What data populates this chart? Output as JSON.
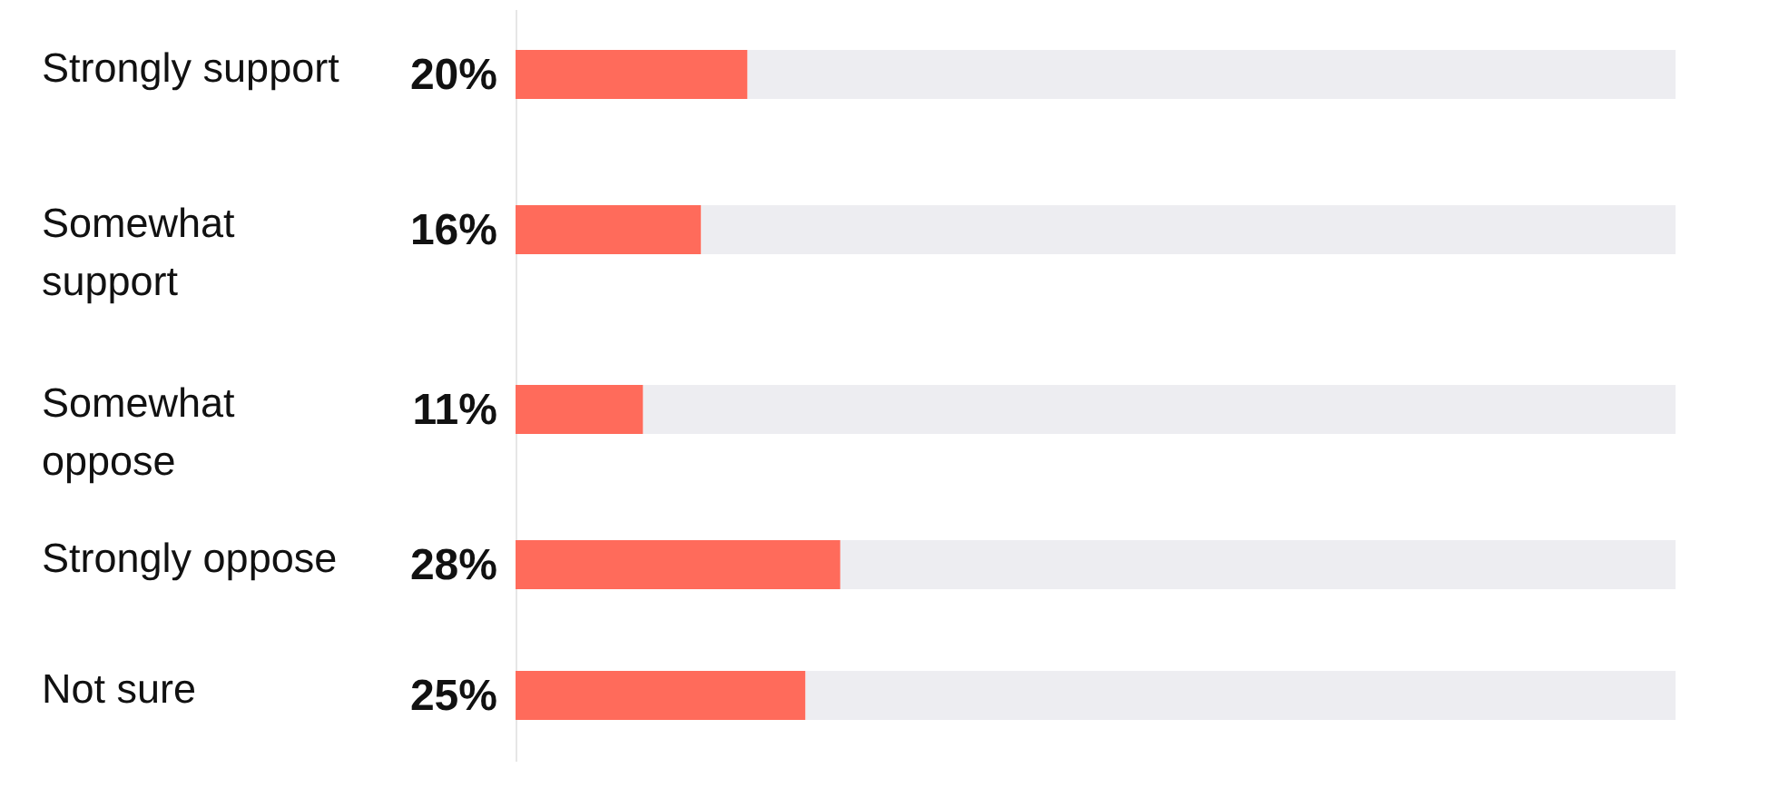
{
  "chart_data": {
    "type": "bar",
    "orientation": "horizontal",
    "stacked": true,
    "categories": [
      "Strongly support",
      "Somewhat support",
      "Somewhat oppose",
      "Strongly oppose",
      "Not sure"
    ],
    "series": [
      {
        "color": "#ff6b5b",
        "values": [
          20,
          16,
          11,
          28,
          25
        ],
        "value_labels": [
          "20%",
          "16%",
          "11%",
          "28%",
          "25%"
        ]
      },
      {
        "color": "#ededf1",
        "values": [
          80,
          84,
          89,
          72,
          75
        ]
      }
    ],
    "tick_labels": "y"
  }
}
